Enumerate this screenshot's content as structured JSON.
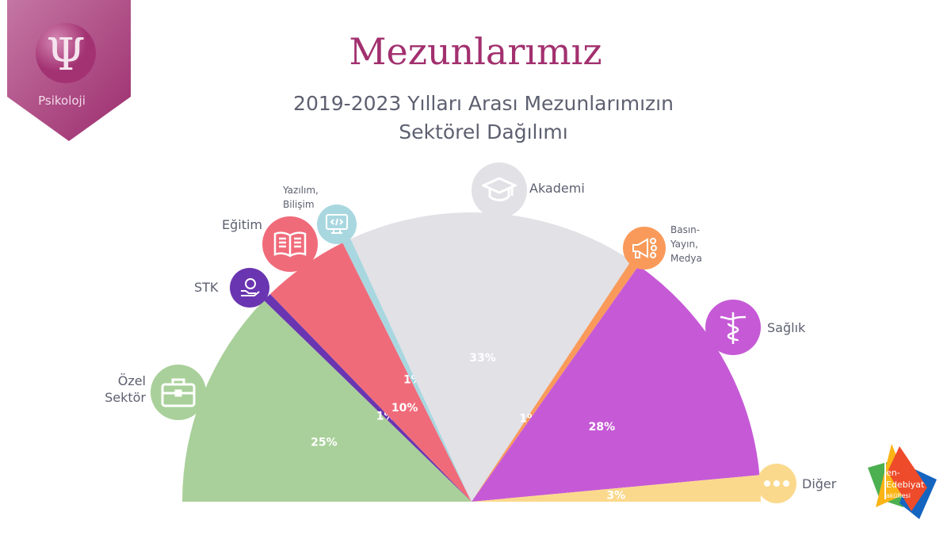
{
  "badge": {
    "label": "Psikoloji",
    "symbol": "Ψ"
  },
  "header": {
    "title": "Mezunlarımız",
    "subtitle_line1": "2019-2023 Yılları Arası Mezunlarımızın",
    "subtitle_line2": "Sektörel Dağılımı"
  },
  "logo": {
    "text": "Fen-Edebiyat Fakültesi"
  },
  "chart_data": {
    "type": "pie",
    "subtype": "semicircle",
    "title": "2019-2023 Yılları Arası Mezunlarımızın Sektörel Dağılımı",
    "categories": [
      "Özel Sektör",
      "STK",
      "Eğitim",
      "Yazılım, Bilişim",
      "Akademi",
      "Basın-Yayın, Medya",
      "Sağlık",
      "Diğer"
    ],
    "values": [
      25,
      1,
      10,
      1,
      33,
      1,
      28,
      3
    ],
    "labels": [
      "25%",
      "1%",
      "10%",
      "1%",
      "33%",
      "1%",
      "28%",
      "3%"
    ],
    "colors": [
      "#a9d09a",
      "#6a35b0",
      "#f06b7a",
      "#a9d7e0",
      "#e1e1e6",
      "#f99a5a",
      "#c65ad6",
      "#fbd98c"
    ]
  },
  "legend": {
    "ozel_1": "Özel",
    "ozel_2": "Sektör",
    "stk": "STK",
    "egitim": "Eğitim",
    "yazilim_1": "Yazılım,",
    "yazilim_2": "Bilişim",
    "akademi": "Akademi",
    "basin_1": "Basın-",
    "basin_2": "Yayın,",
    "basin_3": "Medya",
    "saglik": "Sağlık",
    "diger": "Diğer"
  }
}
